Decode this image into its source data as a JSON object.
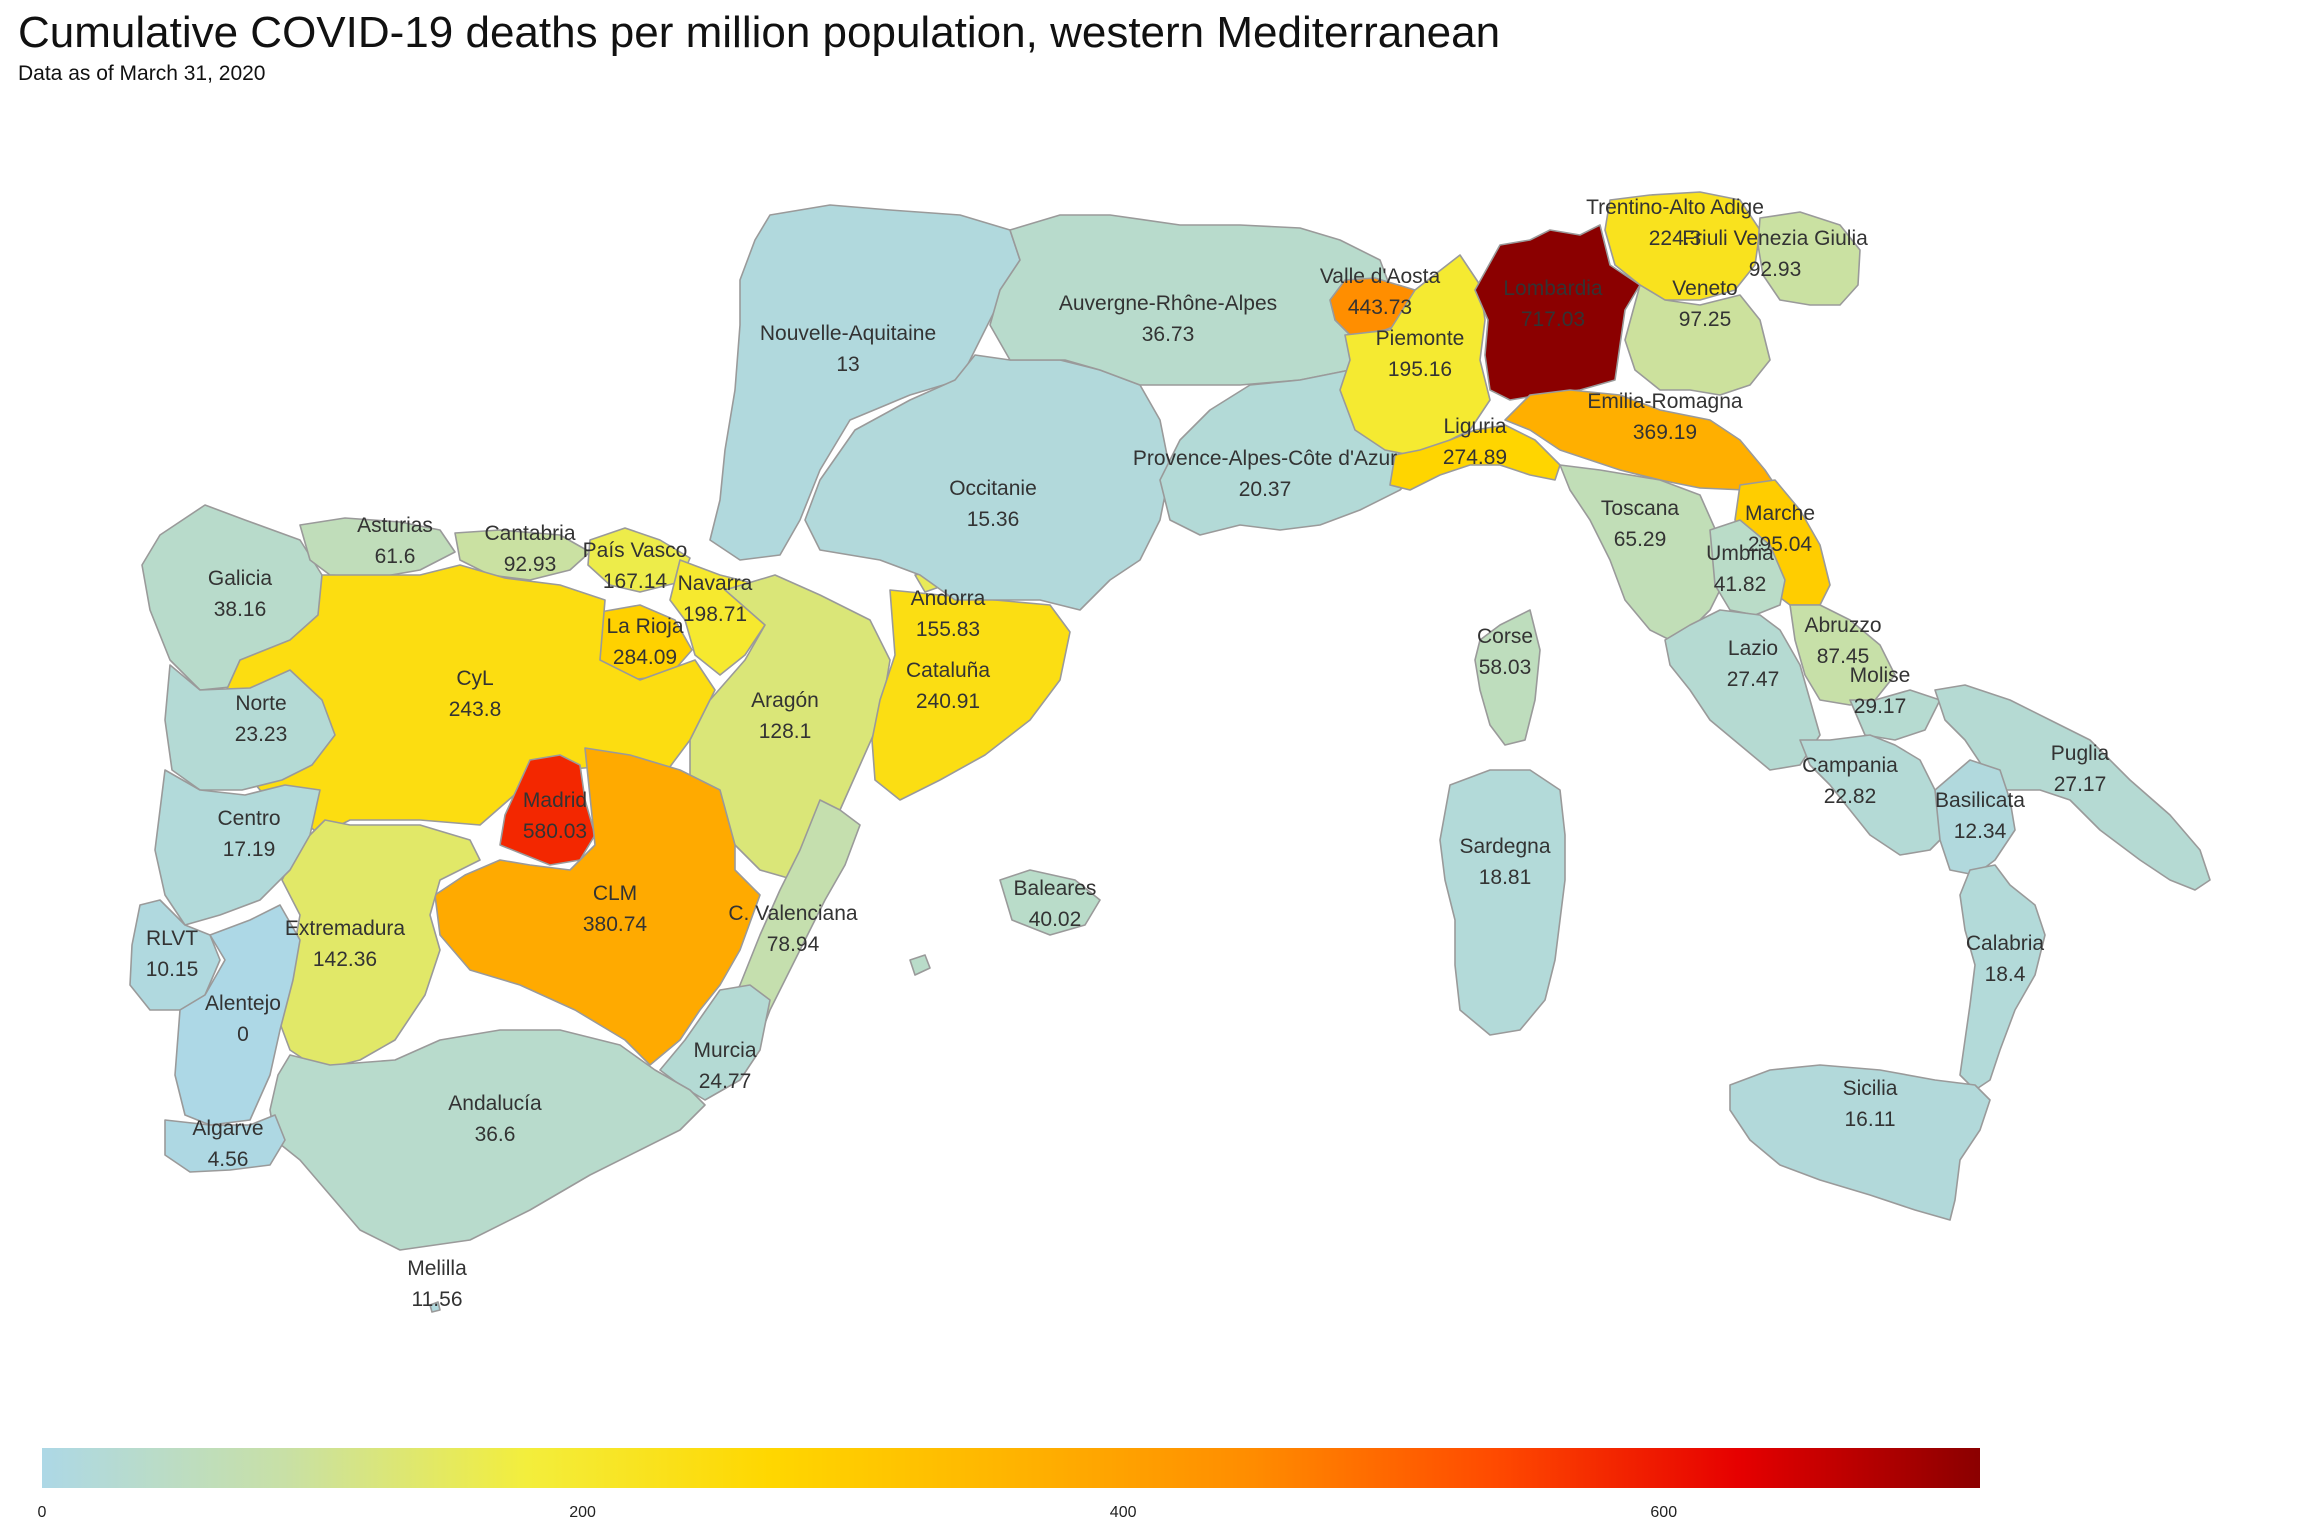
{
  "title": "Cumulative COVID-19 deaths per million population, western Mediterranean",
  "subtitle": "Data as of March 31, 2020",
  "legend": {
    "min": 0,
    "max": 717,
    "ticks": [
      {
        "value": 0,
        "label": "0"
      },
      {
        "value": 200,
        "label": "200"
      },
      {
        "value": 400,
        "label": "400"
      },
      {
        "value": 600,
        "label": "600"
      }
    ],
    "colors": [
      "#add8e6",
      "#c8e0a6",
      "#f3ee3c",
      "#ffd700",
      "#ffb400",
      "#ff8c00",
      "#ff4a00",
      "#e60000",
      "#8b0000"
    ]
  },
  "regions": [
    {
      "name": "Galicia",
      "value": 38.16,
      "value_text": "38.16"
    },
    {
      "name": "Asturias",
      "value": 61.6,
      "value_text": "61.6"
    },
    {
      "name": "Cantabria",
      "value": 92.93,
      "value_text": "92.93"
    },
    {
      "name": "País Vasco",
      "value": 167.14,
      "value_text": "167.14"
    },
    {
      "name": "Navarra",
      "value": 198.71,
      "value_text": "198.71"
    },
    {
      "name": "La Rioja",
      "value": 284.09,
      "value_text": "284.09"
    },
    {
      "name": "CyL",
      "value": 243.8,
      "value_text": "243.8"
    },
    {
      "name": "Aragón",
      "value": 128.1,
      "value_text": "128.1"
    },
    {
      "name": "Cataluña",
      "value": 240.91,
      "value_text": "240.91"
    },
    {
      "name": "Andorra",
      "value": 155.83,
      "value_text": "155.83"
    },
    {
      "name": "Madrid",
      "value": 580.03,
      "value_text": "580.03"
    },
    {
      "name": "CLM",
      "value": 380.74,
      "value_text": "380.74"
    },
    {
      "name": "Extremadura",
      "value": 142.36,
      "value_text": "142.36"
    },
    {
      "name": "C. Valenciana",
      "value": 78.94,
      "value_text": "78.94"
    },
    {
      "name": "Murcia",
      "value": 24.77,
      "value_text": "24.77"
    },
    {
      "name": "Andalucía",
      "value": 36.6,
      "value_text": "36.6"
    },
    {
      "name": "Melilla",
      "value": 11.56,
      "value_text": "11.56"
    },
    {
      "name": "Baleares",
      "value": 40.02,
      "value_text": "40.02"
    },
    {
      "name": "Norte",
      "value": 23.23,
      "value_text": "23.23"
    },
    {
      "name": "Centro",
      "value": 17.19,
      "value_text": "17.19"
    },
    {
      "name": "RLVT",
      "value": 10.15,
      "value_text": "10.15"
    },
    {
      "name": "Alentejo",
      "value": 0,
      "value_text": "0"
    },
    {
      "name": "Algarve",
      "value": 4.56,
      "value_text": "4.56"
    },
    {
      "name": "Nouvelle-Aquitaine",
      "value": 13,
      "value_text": "13"
    },
    {
      "name": "Occitanie",
      "value": 15.36,
      "value_text": "15.36"
    },
    {
      "name": "Auvergne-Rhône-Alpes",
      "value": 36.73,
      "value_text": "36.73"
    },
    {
      "name": "Provence-Alpes-Côte d'Azur",
      "value": 20.37,
      "value_text": "20.37"
    },
    {
      "name": "Corse",
      "value": 58.03,
      "value_text": "58.03"
    },
    {
      "name": "Valle d'Aosta",
      "value": 443.73,
      "value_text": "443.73"
    },
    {
      "name": "Piemonte",
      "value": 195.16,
      "value_text": "195.16"
    },
    {
      "name": "Lombardia",
      "value": 717.03,
      "value_text": "717.03"
    },
    {
      "name": "Trentino-Alto Adige",
      "value": 224.3,
      "value_text": "224.3"
    },
    {
      "name": "Veneto",
      "value": 97.25,
      "value_text": "97.25"
    },
    {
      "name": "Friuli Venezia Giulia",
      "value": 92.93,
      "value_text": "92.93"
    },
    {
      "name": "Liguria",
      "value": 274.89,
      "value_text": "274.89"
    },
    {
      "name": "Emilia-Romagna",
      "value": 369.19,
      "value_text": "369.19"
    },
    {
      "name": "Toscana",
      "value": 65.29,
      "value_text": "65.29"
    },
    {
      "name": "Marche",
      "value": 295.04,
      "value_text": "295.04"
    },
    {
      "name": "Umbria",
      "value": 41.82,
      "value_text": "41.82"
    },
    {
      "name": "Lazio",
      "value": 27.47,
      "value_text": "27.47"
    },
    {
      "name": "Abruzzo",
      "value": 87.45,
      "value_text": "87.45"
    },
    {
      "name": "Molise",
      "value": 29.17,
      "value_text": "29.17"
    },
    {
      "name": "Campania",
      "value": 22.82,
      "value_text": "22.82"
    },
    {
      "name": "Puglia",
      "value": 27.17,
      "value_text": "27.17"
    },
    {
      "name": "Basilicata",
      "value": 12.34,
      "value_text": "12.34"
    },
    {
      "name": "Calabria",
      "value": 18.4,
      "value_text": "18.4"
    },
    {
      "name": "Sicilia",
      "value": 16.11,
      "value_text": "16.11"
    },
    {
      "name": "Sardegna",
      "value": 18.81,
      "value_text": "18.81"
    }
  ]
}
